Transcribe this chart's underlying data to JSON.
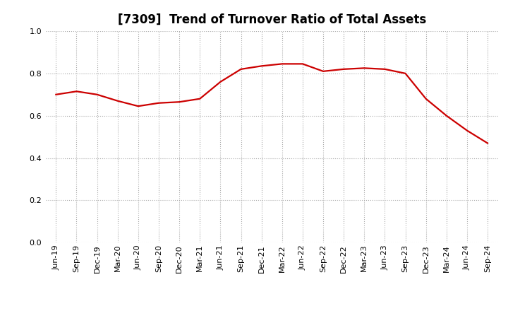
{
  "title": "[7309]  Trend of Turnover Ratio of Total Assets",
  "x_labels": [
    "Jun-19",
    "Sep-19",
    "Dec-19",
    "Mar-20",
    "Jun-20",
    "Sep-20",
    "Dec-20",
    "Mar-21",
    "Jun-21",
    "Sep-21",
    "Dec-21",
    "Mar-22",
    "Jun-22",
    "Sep-22",
    "Dec-22",
    "Mar-23",
    "Jun-23",
    "Sep-23",
    "Dec-23",
    "Mar-24",
    "Jun-24",
    "Sep-24"
  ],
  "y_values": [
    0.7,
    0.715,
    0.7,
    0.67,
    0.645,
    0.66,
    0.665,
    0.68,
    0.76,
    0.82,
    0.835,
    0.845,
    0.845,
    0.81,
    0.82,
    0.825,
    0.82,
    0.8,
    0.68,
    0.6,
    0.53,
    0.47
  ],
  "line_color": "#cc0000",
  "line_width": 1.6,
  "ylim": [
    0.0,
    1.0
  ],
  "yticks": [
    0.0,
    0.2,
    0.4,
    0.6,
    0.8,
    1.0
  ],
  "grid_color": "#aaaaaa",
  "grid_style": "dotted",
  "bg_color": "#ffffff",
  "title_fontsize": 12,
  "tick_fontsize": 8
}
